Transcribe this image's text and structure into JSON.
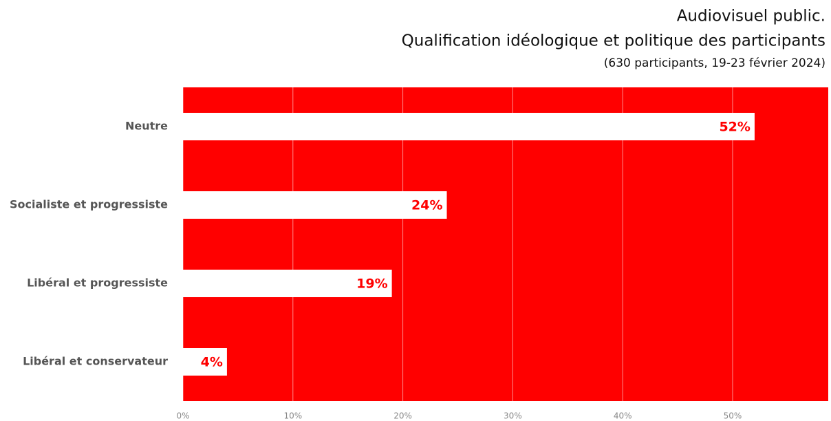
{
  "chart_data": {
    "type": "bar",
    "orientation": "horizontal",
    "title": [
      "Audiovisuel public.",
      "Qualification idéologique et politique des participants"
    ],
    "subtitle": "(630 participants, 19-23 février 2024)",
    "categories": [
      "Neutre",
      "Socialiste et progressiste",
      "Libéral et progressiste",
      "Libéral et conservateur"
    ],
    "values": [
      52,
      24,
      19,
      4
    ],
    "value_labels": [
      "52%",
      "24%",
      "19%",
      "4%"
    ],
    "color": "#ffffff",
    "label_color": "#ff0000",
    "background": "#ff0000",
    "xlim": [
      0,
      58.7
    ],
    "xticks": [
      {
        "value": 0,
        "label": "0%"
      },
      {
        "value": 10,
        "label": "10%"
      },
      {
        "value": 20,
        "label": "20%"
      },
      {
        "value": 30,
        "label": "30%"
      },
      {
        "value": 40,
        "label": "40%"
      },
      {
        "value": 50,
        "label": "50%"
      }
    ],
    "grid": true
  }
}
